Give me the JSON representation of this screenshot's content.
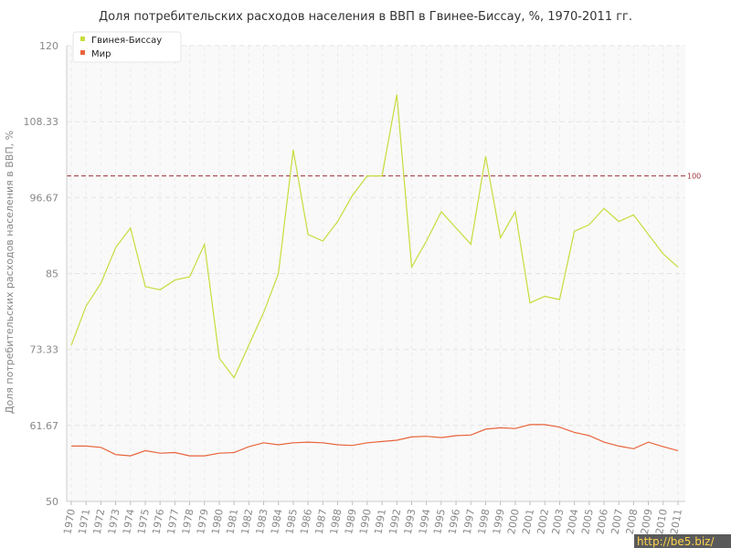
{
  "chart_data": {
    "type": "line",
    "title": "Доля потребительских расходов населения в ВВП в Гвинее-Биссау, %, 1970-2011 гг.",
    "ylabel": "Доля потребительских расходов населения в ВВП, %",
    "ylim": [
      50,
      120
    ],
    "yticks": [
      "50",
      "61.67",
      "73.33",
      "85",
      "96.67",
      "108.33",
      "120"
    ],
    "x": [
      "1970",
      "1971",
      "1972",
      "1973",
      "1974",
      "1975",
      "1976",
      "1977",
      "1978",
      "1979",
      "1980",
      "1981",
      "1982",
      "1983",
      "1984",
      "1985",
      "1986",
      "1987",
      "1988",
      "1989",
      "1990",
      "1991",
      "1992",
      "1993",
      "1994",
      "1995",
      "1996",
      "1997",
      "1998",
      "1999",
      "2000",
      "2001",
      "2002",
      "2003",
      "2004",
      "2005",
      "2006",
      "2007",
      "2008",
      "2009",
      "2010",
      "2011"
    ],
    "series": [
      {
        "name": "Гвинея-Биссау",
        "color": "#c8dc3c",
        "values": [
          74.0,
          80.0,
          83.5,
          89.0,
          92.0,
          83.0,
          82.5,
          84.0,
          84.5,
          89.5,
          72.0,
          69.0,
          74.0,
          79.0,
          85.0,
          104.0,
          91.0,
          90.0,
          93.0,
          97.0,
          100.0,
          100.0,
          112.5,
          86.0,
          90.0,
          94.5,
          92.0,
          89.5,
          103.0,
          90.5,
          94.5,
          80.5,
          81.5,
          81.0,
          91.5,
          92.5,
          95.0,
          93.0,
          94.0,
          91.0,
          88.0,
          86.0
        ]
      },
      {
        "name": "Мир",
        "color": "#e8643c",
        "values": [
          58.5,
          58.5,
          58.3,
          57.2,
          57.0,
          57.8,
          57.4,
          57.5,
          57.0,
          57.0,
          57.4,
          57.5,
          58.4,
          59.0,
          58.7,
          59.0,
          59.1,
          59.0,
          58.7,
          58.6,
          59.0,
          59.2,
          59.4,
          59.9,
          60.0,
          59.8,
          60.1,
          60.2,
          61.1,
          61.3,
          61.2,
          61.8,
          61.8,
          61.4,
          60.6,
          60.1,
          59.1,
          58.5,
          58.1,
          59.1,
          58.4,
          57.8
        ]
      }
    ],
    "reference_line": {
      "value": 100,
      "label": "100",
      "color": "#a0303a"
    },
    "legend_position": "top-left",
    "grid": true
  },
  "watermark": "http://be5.biz/"
}
